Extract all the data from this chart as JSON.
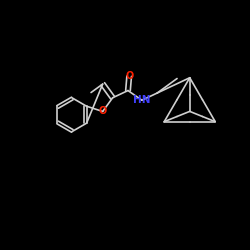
{
  "background_color": "#000000",
  "bond_color": "#d0d0d0",
  "nitrogen_color": "#4040ff",
  "oxygen_color": "#ff2000",
  "figsize": [
    2.5,
    2.5
  ],
  "dpi": 100,
  "HN_label": "HN",
  "O_label": "O",
  "lw": 1.2,
  "fontsize": 7.5
}
